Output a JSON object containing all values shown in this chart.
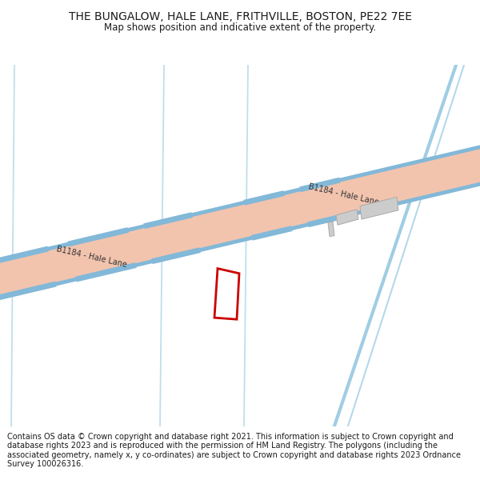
{
  "title": "THE BUNGALOW, HALE LANE, FRITHVILLE, BOSTON, PE22 7EE",
  "subtitle": "Map shows position and indicative extent of the property.",
  "footer": "Contains OS data © Crown copyright and database right 2021. This information is subject to Crown copyright and database rights 2023 and is reproduced with the permission of HM Land Registry. The polygons (including the associated geometry, namely x, y co-ordinates) are subject to Crown copyright and database rights 2023 Ordnance Survey 100026316.",
  "bg_color": "#ffffff",
  "map_bg": "#f0f4ff",
  "road_fill": "#f2c4ae",
  "road_border": "#82b8d8",
  "water_color": "#96c8e0",
  "building_color": "#cccccc",
  "plot_color": "#cc0000",
  "text_color": "#1a1a1a",
  "road_label": "B1184 - Hale Lane",
  "road_label_color": "#333333",
  "title_fontsize": 10,
  "subtitle_fontsize": 8.5,
  "footer_fontsize": 7.0
}
